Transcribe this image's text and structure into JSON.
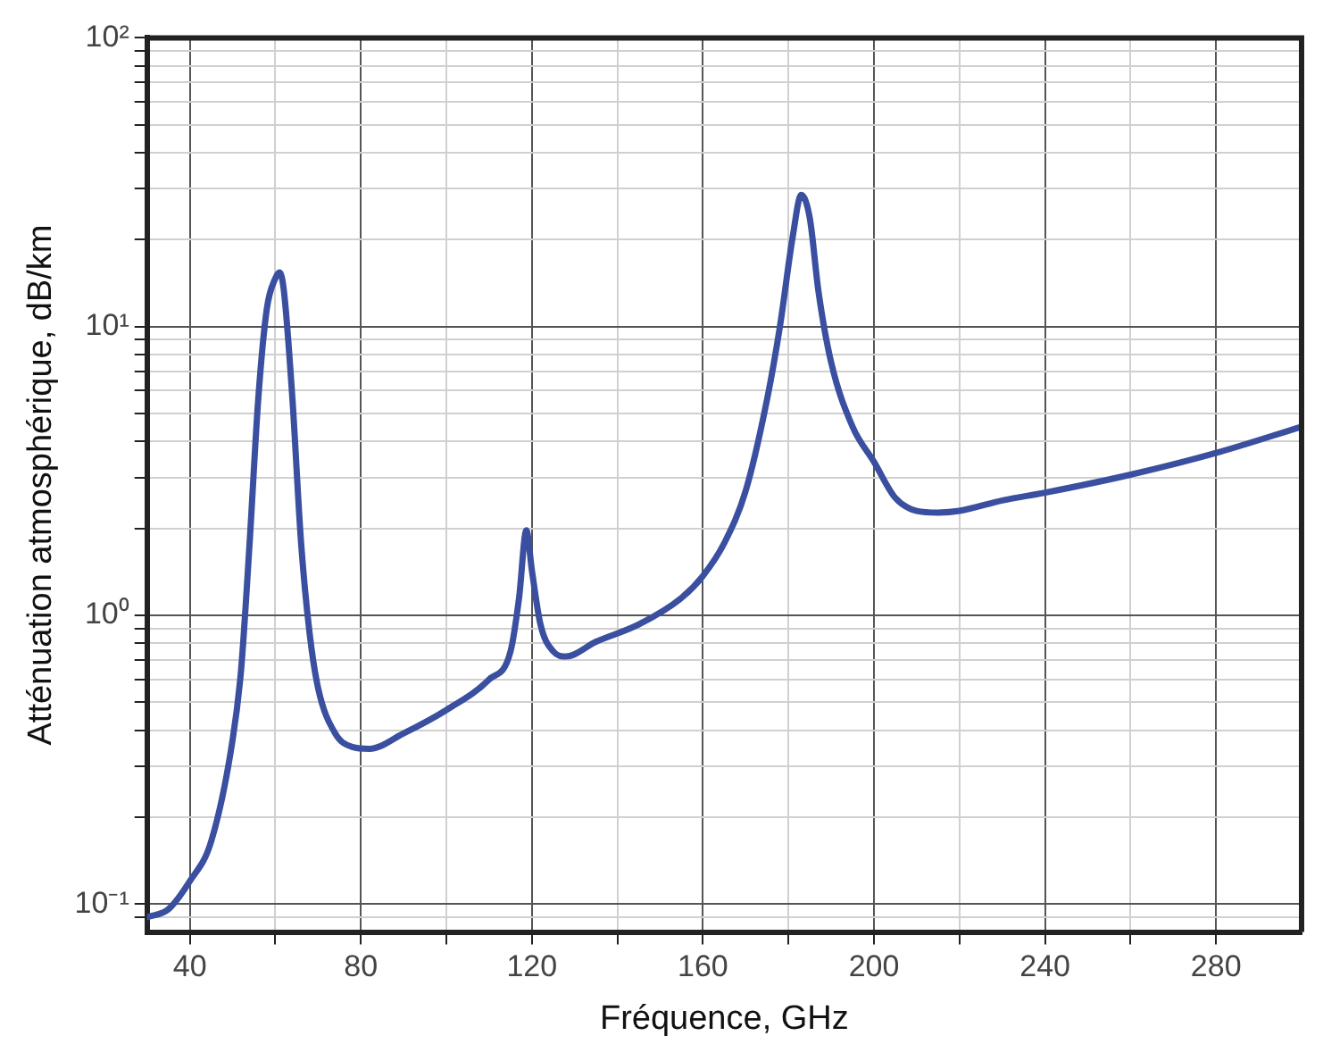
{
  "chart_data": {
    "type": "line",
    "xlabel": "Fréquence, GHz",
    "ylabel": "Atténuation atmosphérique, dB/km",
    "x": [
      30,
      35,
      40,
      45,
      50,
      52,
      54,
      56,
      58,
      60,
      61,
      62,
      64,
      66,
      68,
      70,
      74,
      78,
      82,
      90,
      100,
      110,
      115,
      117,
      118.7,
      120,
      122,
      125,
      128,
      135,
      145,
      155,
      160,
      165,
      170,
      175,
      178,
      181,
      183,
      185,
      187,
      190,
      195,
      200,
      205,
      210,
      215,
      220,
      230,
      240,
      260,
      280,
      300
    ],
    "series": [
      {
        "color": "#3a4fa0",
        "values": [
          0.09,
          0.096,
          0.12,
          0.165,
          0.37,
          0.65,
          1.8,
          5.6,
          11.5,
          14.7,
          15.4,
          13.3,
          5.6,
          1.8,
          0.87,
          0.56,
          0.39,
          0.35,
          0.345,
          0.39,
          0.47,
          0.6,
          0.75,
          1.15,
          1.97,
          1.43,
          0.93,
          0.75,
          0.72,
          0.81,
          0.93,
          1.15,
          1.37,
          1.78,
          2.7,
          5.6,
          10,
          20.5,
          28.6,
          23.7,
          13.3,
          7.5,
          4.5,
          3.4,
          2.55,
          2.3,
          2.27,
          2.3,
          2.5,
          2.66,
          3.07,
          3.65,
          4.5
        ]
      }
    ],
    "log": "y",
    "xlim": [
      30,
      300
    ],
    "ylim": [
      0.08,
      100
    ],
    "xticks": [
      40,
      {
        "value": 60,
        "label": null
      },
      80,
      {
        "value": 100,
        "label": null
      },
      120,
      {
        "value": 140,
        "label": null
      },
      160,
      {
        "value": 180,
        "label": null
      },
      200,
      {
        "value": 220,
        "label": null
      },
      240,
      {
        "value": 260,
        "label": null
      },
      280
    ],
    "yticks": [
      {
        "value": 0.09,
        "label": null
      },
      {
        "value": 0.1,
        "label": "10⁻¹"
      },
      {
        "value": 0.2,
        "label": null
      },
      {
        "value": 0.3,
        "label": null
      },
      {
        "value": 0.4,
        "label": null
      },
      {
        "value": 0.5,
        "label": null
      },
      {
        "value": 0.6,
        "label": null
      },
      {
        "value": 0.7,
        "label": null
      },
      {
        "value": 0.8,
        "label": null
      },
      {
        "value": 0.9,
        "label": null
      },
      {
        "value": 1,
        "label": "10⁰"
      },
      {
        "value": 2,
        "label": null
      },
      {
        "value": 3,
        "label": null
      },
      {
        "value": 4,
        "label": null
      },
      {
        "value": 5,
        "label": null
      },
      {
        "value": 6,
        "label": null
      },
      {
        "value": 7,
        "label": null
      },
      {
        "value": 8,
        "label": null
      },
      {
        "value": 9,
        "label": null
      },
      {
        "value": 10,
        "label": "10¹"
      },
      {
        "value": 20,
        "label": null
      },
      {
        "value": 30,
        "label": null
      },
      {
        "value": 40,
        "label": null
      },
      {
        "value": 50,
        "label": null
      },
      {
        "value": 60,
        "label": null
      },
      {
        "value": 70,
        "label": null
      },
      {
        "value": 80,
        "label": null
      },
      {
        "value": 90,
        "label": null
      },
      {
        "value": 100,
        "label": "10²"
      }
    ],
    "grid": true,
    "marker": "none",
    "line_style": "solid",
    "legend": false
  }
}
